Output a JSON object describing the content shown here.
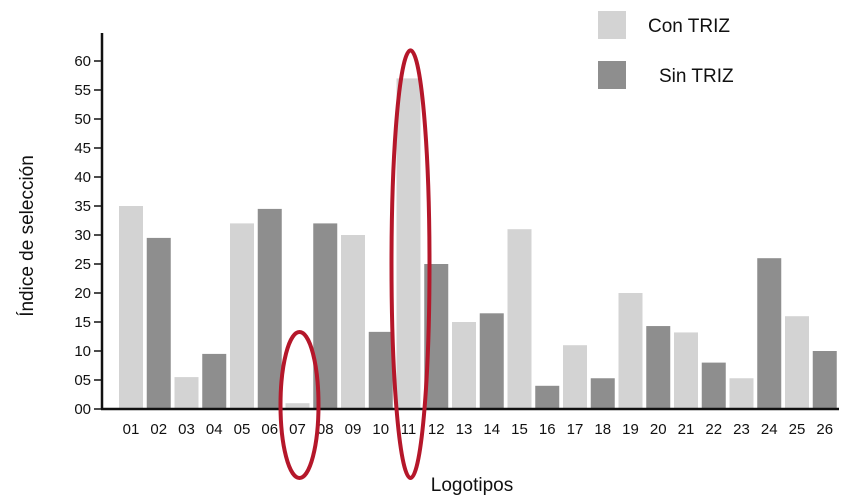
{
  "chart_data": {
    "type": "bar",
    "title": "",
    "xlabel": "Logotipos",
    "ylabel": "Índice de selección",
    "ylim": [
      0,
      60
    ],
    "yticks": [
      "00",
      "05",
      "10",
      "15",
      "20",
      "25",
      "30",
      "35",
      "40",
      "45",
      "50",
      "55",
      "60"
    ],
    "categories": [
      "01",
      "02",
      "03",
      "04",
      "05",
      "06",
      "07",
      "08",
      "09",
      "10",
      "11",
      "12",
      "13",
      "14",
      "15",
      "16",
      "17",
      "18",
      "19",
      "20",
      "21",
      "22",
      "23",
      "24",
      "25",
      "26"
    ],
    "series": [
      {
        "name": "Con TRIZ",
        "color": "#d3d3d3"
      },
      {
        "name": "Sin TRIZ",
        "color": "#8e8e8e"
      }
    ],
    "values": [
      35,
      29.5,
      5.5,
      9.5,
      32,
      34.5,
      1,
      32,
      30,
      13.3,
      57,
      25,
      15,
      16.5,
      31,
      4,
      11,
      5.3,
      20,
      14.3,
      13.2,
      8,
      5.3,
      26,
      16,
      10
    ],
    "value_series": [
      "Con TRIZ",
      "Sin TRIZ",
      "Con TRIZ",
      "Sin TRIZ",
      "Con TRIZ",
      "Sin TRIZ",
      "Con TRIZ",
      "Sin TRIZ",
      "Con TRIZ",
      "Sin TRIZ",
      "Con TRIZ",
      "Sin TRIZ",
      "Con TRIZ",
      "Sin TRIZ",
      "Con TRIZ",
      "Sin TRIZ",
      "Con TRIZ",
      "Sin TRIZ",
      "Con TRIZ",
      "Sin TRIZ",
      "Con TRIZ",
      "Sin TRIZ",
      "Con TRIZ",
      "Sin TRIZ",
      "Con TRIZ",
      "Sin TRIZ"
    ],
    "highlights": [
      "07",
      "11"
    ],
    "highlight_color": "#b5172a",
    "legend_position": "top-right",
    "grid": false
  }
}
